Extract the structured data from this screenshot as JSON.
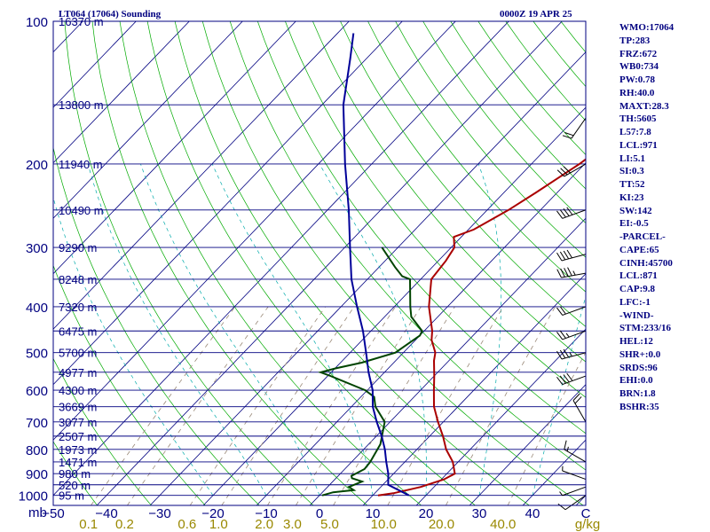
{
  "header": {
    "station": "LT064 (17064) Sounding",
    "datetime": "0000Z 19 APR 25"
  },
  "chart_data": {
    "type": "line",
    "title": "LT064 (17064) Sounding",
    "subtitle": "0000Z 19 APR 25",
    "xlabel": "C",
    "ylabel": "mb",
    "x_unit_label": "C",
    "mixing_ratio_unit": "g/kg",
    "pressure_unit": "mb",
    "xlim": [
      -50,
      50
    ],
    "ylim": [
      1000,
      100
    ],
    "y_scale": "log",
    "pressure_levels": [
      100,
      200,
      300,
      400,
      500,
      600,
      700,
      800,
      900,
      1000
    ],
    "temperature_ticks": [
      -50,
      -40,
      -30,
      -20,
      -10,
      0,
      10,
      20,
      30,
      40
    ],
    "temperature_tick_labels": [
      "−50",
      "−40",
      "−30",
      "−20",
      "−10",
      "0",
      "10",
      "20",
      "30",
      "40"
    ],
    "mixing_ratio_ticks": [
      {
        "value": 0.1,
        "label": "0.1"
      },
      {
        "value": 0.2,
        "label": "0.2"
      },
      {
        "value": 0.6,
        "label": "0.6"
      },
      {
        "value": 1.0,
        "label": "1.0"
      },
      {
        "value": 2.0,
        "label": "2.0"
      },
      {
        "value": 3.0,
        "label": "3.0"
      },
      {
        "value": 5.0,
        "label": "5.0"
      },
      {
        "value": 10.0,
        "label": "10.0"
      },
      {
        "value": 20.0,
        "label": "20.0"
      },
      {
        "value": 40.0,
        "label": "40.0"
      }
    ],
    "height_labels": [
      {
        "p": 100,
        "label": "16370 m"
      },
      {
        "p": 150,
        "label": "13800 m"
      },
      {
        "p": 200,
        "label": "11940 m"
      },
      {
        "p": 250,
        "label": "10490 m"
      },
      {
        "p": 300,
        "label": "9290 m"
      },
      {
        "p": 350,
        "label": "8248 m"
      },
      {
        "p": 400,
        "label": "7320 m"
      },
      {
        "p": 450,
        "label": "6475 m"
      },
      {
        "p": 500,
        "label": "5700 m"
      },
      {
        "p": 550,
        "label": "4977 m"
      },
      {
        "p": 600,
        "label": "4300 m"
      },
      {
        "p": 650,
        "label": "3669 m"
      },
      {
        "p": 700,
        "label": "3077 m"
      },
      {
        "p": 750,
        "label": "2507 m"
      },
      {
        "p": 800,
        "label": "1973 m"
      },
      {
        "p": 850,
        "label": "1471 m"
      },
      {
        "p": 900,
        "label": "980 m"
      },
      {
        "p": 950,
        "label": "520 m"
      },
      {
        "p": 1000,
        "label": "95 m"
      }
    ],
    "series": [
      {
        "key": "temperature",
        "color": "#aa0000",
        "points": [
          [
            1000,
            11
          ],
          [
            990,
            13.5
          ],
          [
            960,
            17.5
          ],
          [
            925,
            20.5
          ],
          [
            900,
            21.5
          ],
          [
            850,
            19
          ],
          [
            800,
            15.5
          ],
          [
            750,
            12.5
          ],
          [
            700,
            9
          ],
          [
            650,
            5.5
          ],
          [
            600,
            2.5
          ],
          [
            560,
            0
          ],
          [
            520,
            -2.8
          ],
          [
            500,
            -4
          ],
          [
            470,
            -7
          ],
          [
            450,
            -8.5
          ],
          [
            400,
            -13.5
          ],
          [
            350,
            -18
          ],
          [
            320,
            -18.6
          ],
          [
            300,
            -19.4
          ],
          [
            285,
            -21.4
          ],
          [
            275,
            -19
          ],
          [
            250,
            -16
          ],
          [
            230,
            -14
          ],
          [
            200,
            -11
          ],
          [
            180,
            -9.5
          ],
          [
            165,
            -8
          ],
          [
            150,
            -6
          ],
          [
            148,
            -4.5
          ],
          [
            125,
            -1
          ],
          [
            100,
            4
          ]
        ]
      },
      {
        "key": "dewpoint",
        "color": "#004400",
        "points": [
          [
            1000,
            0.5
          ],
          [
            985,
            2
          ],
          [
            975,
            5.5
          ],
          [
            960,
            4
          ],
          [
            935,
            5.5
          ],
          [
            920,
            3
          ],
          [
            910,
            2.5
          ],
          [
            880,
            3.7
          ],
          [
            850,
            3.5
          ],
          [
            780,
            2.2
          ],
          [
            700,
            -1
          ],
          [
            650,
            -5.5
          ],
          [
            620,
            -7.5
          ],
          [
            600,
            -10.4
          ],
          [
            560,
            -19.5
          ],
          [
            550,
            -22
          ],
          [
            540,
            -20
          ],
          [
            525,
            -16
          ],
          [
            500,
            -11.5
          ],
          [
            460,
            -10
          ],
          [
            450,
            -10.4
          ],
          [
            420,
            -15
          ],
          [
            400,
            -17
          ],
          [
            350,
            -22
          ],
          [
            345,
            -24
          ],
          [
            330,
            -27
          ],
          [
            300,
            -33
          ]
        ]
      },
      {
        "key": "parcel",
        "color": "#000099",
        "points": [
          [
            1000,
            16.8
          ],
          [
            950,
            11
          ],
          [
            900,
            9
          ],
          [
            850,
            6.5
          ],
          [
            800,
            4
          ],
          [
            750,
            1
          ],
          [
            700,
            -2.5
          ],
          [
            650,
            -6
          ],
          [
            600,
            -9
          ],
          [
            550,
            -13
          ],
          [
            500,
            -17
          ],
          [
            450,
            -21.5
          ],
          [
            400,
            -27
          ],
          [
            350,
            -33
          ],
          [
            300,
            -39
          ],
          [
            250,
            -46
          ],
          [
            200,
            -55
          ],
          [
            150,
            -66
          ],
          [
            120,
            -73
          ],
          [
            106,
            -77
          ]
        ]
      }
    ],
    "wind_barbs": [
      {
        "p": 1000,
        "dir": 235,
        "spd": 10
      },
      {
        "p": 960,
        "dir": 250,
        "spd": 5
      },
      {
        "p": 925,
        "dir": 290,
        "spd": 5
      },
      {
        "p": 850,
        "dir": 300,
        "spd": 15
      },
      {
        "p": 700,
        "dir": 330,
        "spd": 20
      },
      {
        "p": 560,
        "dir": 250,
        "spd": 40
      },
      {
        "p": 500,
        "dir": 255,
        "spd": 35
      },
      {
        "p": 450,
        "dir": 250,
        "spd": 25
      },
      {
        "p": 400,
        "dir": 250,
        "spd": 20
      },
      {
        "p": 340,
        "dir": 260,
        "spd": 45
      },
      {
        "p": 310,
        "dir": 255,
        "spd": 40
      },
      {
        "p": 250,
        "dir": 250,
        "spd": 40
      },
      {
        "p": 200,
        "dir": 240,
        "spd": 30
      },
      {
        "p": 160,
        "dir": 215,
        "spd": 20
      }
    ],
    "line_colors": {
      "isobar": "#000080",
      "isotherm": "#000080",
      "dry_adiabat": "#00aa00",
      "moist_adiabat": "#00aa00",
      "mixing_ratio": "#998877",
      "thetae": "#00aaaa",
      "labels": "#000080",
      "mixing_ratio_label": "#998800"
    },
    "stats": [
      "WMO:17064",
      "TP:283",
      "FRZ:672",
      "WB0:734",
      "PW:0.78",
      "RH:40.0",
      "MAXT:28.3",
      "TH:5605",
      "L57:7.8",
      "LCL:971",
      "LI:5.1",
      "SI:0.3",
      "TT:52",
      "KI:23",
      "SW:142",
      "EI:-0.5",
      "-PARCEL-",
      "CAPE:65",
      "CINH:45700",
      "LCL:871",
      "CAP:9.8",
      "LFC:-1",
      "-WIND-",
      "STM:233/16",
      "HEL:12",
      "SHR+:0.0",
      "SRDS:96",
      "EHI:0.0",
      "BRN:1.8",
      "BSHR:35"
    ]
  }
}
